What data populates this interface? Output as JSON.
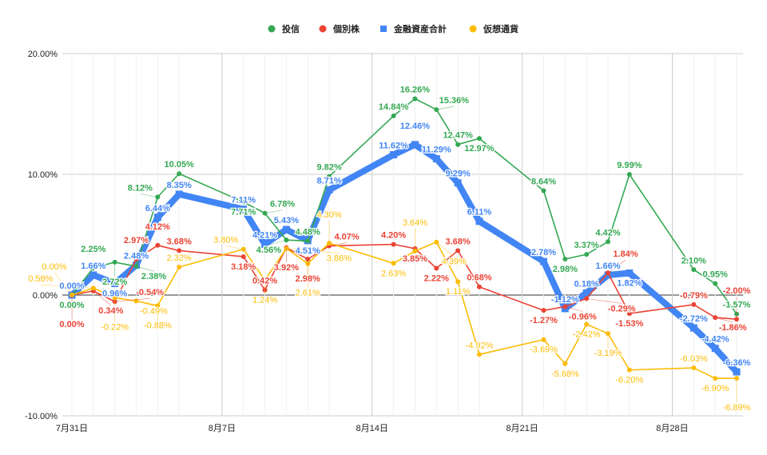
{
  "chart_data": {
    "type": "line",
    "x": [
      "7/31",
      "8/1",
      "8/2",
      "8/3",
      "8/4",
      "8/5",
      "8/8",
      "8/9",
      "8/10",
      "8/11",
      "8/12",
      "8/15",
      "8/16",
      "8/17",
      "8/18",
      "8/19",
      "8/22",
      "8/23",
      "8/24",
      "8/25",
      "8/26",
      "8/29",
      "8/30",
      "8/31"
    ],
    "x_days": [
      0,
      1,
      2,
      3,
      4,
      5,
      8,
      9,
      10,
      11,
      12,
      15,
      16,
      17,
      18,
      19,
      22,
      23,
      24,
      25,
      26,
      29,
      30,
      31
    ],
    "x_ticks": [
      {
        "day": 0,
        "label": "7月31日"
      },
      {
        "day": 7,
        "label": "8月7日"
      },
      {
        "day": 14,
        "label": "8月14日"
      },
      {
        "day": 21,
        "label": "8月21日"
      },
      {
        "day": 28,
        "label": "8月28日"
      }
    ],
    "y_ticks": [
      {
        "value": 20,
        "label": "20.00%"
      },
      {
        "value": 10,
        "label": "10.00%"
      },
      {
        "value": 0,
        "label": "0.00%"
      },
      {
        "value": -10,
        "label": "-10.00%"
      }
    ],
    "ylim": [
      -10,
      20
    ],
    "grid": true,
    "legend_position": "top",
    "series": [
      {
        "name": "投信",
        "color": "#34a853",
        "marker": "circle",
        "values": [
          0,
          2.25,
          2.72,
          2.38,
          8.12,
          10.05,
          7.71,
          6.78,
          4.56,
          4.48,
          9.82,
          14.84,
          16.26,
          15.36,
          12.47,
          12.97,
          8.64,
          2.98,
          3.37,
          4.42,
          9.99,
          2.1,
          0.95,
          -1.57
        ]
      },
      {
        "name": "個別株",
        "color": "#ea4335",
        "marker": "circle",
        "values": [
          0,
          0.34,
          -0.54,
          2.97,
          4.12,
          3.68,
          3.18,
          0.42,
          3.92,
          2.98,
          4.07,
          4.2,
          3.85,
          2.22,
          3.68,
          0.68,
          -1.27,
          -0.96,
          -0.29,
          1.84,
          -1.53,
          -0.79,
          -1.86,
          -2.0
        ]
      },
      {
        "name": "金融資産合計",
        "color": "#4285f4",
        "marker": "square",
        "values": [
          0,
          1.66,
          0.96,
          2.48,
          6.44,
          8.35,
          7.11,
          4.21,
          5.43,
          4.51,
          8.71,
          11.62,
          12.46,
          11.29,
          9.29,
          6.11,
          2.78,
          -1.12,
          0.18,
          1.66,
          1.82,
          -2.72,
          -4.42,
          -6.36
        ]
      },
      {
        "name": "仮想通貨",
        "color": "#fbbc04",
        "marker": "circle",
        "values": [
          0,
          0.58,
          -0.22,
          -0.49,
          -0.88,
          2.32,
          3.8,
          1.24,
          3.86,
          2.61,
          4.3,
          2.63,
          3.64,
          4.39,
          1.11,
          -4.92,
          -3.69,
          -5.68,
          -2.42,
          -3.19,
          -6.2,
          -6.03,
          -6.9,
          -6.89
        ]
      }
    ]
  }
}
